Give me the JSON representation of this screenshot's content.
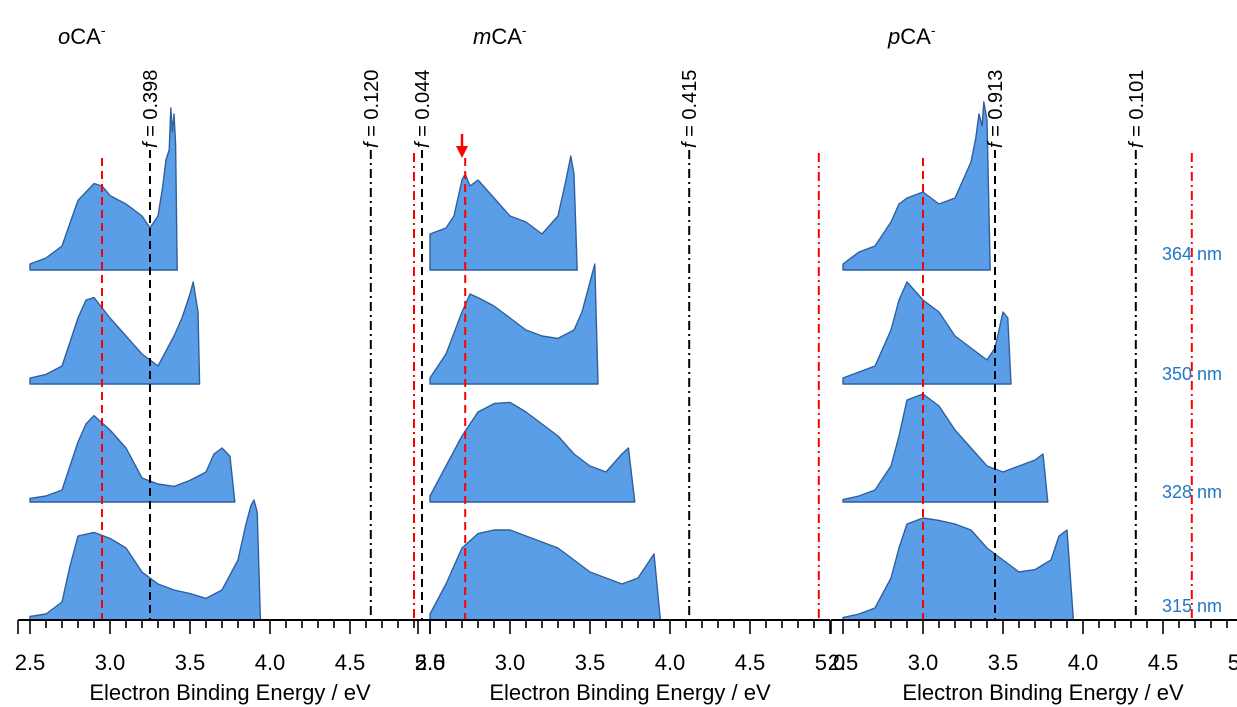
{
  "chart_data": {
    "type": "area",
    "xlabel": "Electron Binding Energy / eV",
    "xlim": [
      2.5,
      5.0
    ],
    "xticks": [
      "2.5",
      "3.0",
      "3.5",
      "4.0",
      "4.5",
      "5.0"
    ],
    "wavelength_labels": [
      "364 nm",
      "350 nm",
      "328 nm",
      "315 nm"
    ],
    "colors": {
      "fill": "#5a9ee8",
      "stroke": "#2f5f9e",
      "red_line": "#ff0000",
      "black_line": "#000000",
      "wavelength_label": "#1f77c7"
    },
    "panels": [
      {
        "title_italic": "o",
        "title_rest": "CA",
        "title_sup": "-",
        "red_lines": [
          2.95,
          4.9
        ],
        "f_lines": [
          {
            "x": 3.25,
            "style": "dashed",
            "label_f": "f",
            "label_value": "= 0.398"
          },
          {
            "x": 4.63,
            "style": "dashdot",
            "label_f": "f",
            "label_value": "= 0.120"
          }
        ],
        "arrow_x": null,
        "series": [
          {
            "name": "364 nm",
            "x": [
              2.5,
              2.6,
              2.7,
              2.8,
              2.85,
              2.9,
              2.95,
              3.0,
              3.1,
              3.2,
              3.25,
              3.3,
              3.33,
              3.35,
              3.37,
              3.38,
              3.39,
              3.4,
              3.41,
              3.42
            ],
            "y": [
              0.05,
              0.1,
              0.2,
              0.58,
              0.65,
              0.72,
              0.7,
              0.62,
              0.55,
              0.45,
              0.35,
              0.45,
              0.7,
              0.92,
              1.0,
              1.35,
              1.15,
              1.3,
              1.05,
              0.0
            ]
          },
          {
            "name": "350 nm",
            "x": [
              2.5,
              2.6,
              2.7,
              2.8,
              2.85,
              2.9,
              3.0,
              3.1,
              3.2,
              3.3,
              3.4,
              3.45,
              3.5,
              3.52,
              3.55,
              3.56
            ],
            "y": [
              0.05,
              0.08,
              0.15,
              0.55,
              0.7,
              0.72,
              0.55,
              0.4,
              0.25,
              0.15,
              0.4,
              0.55,
              0.75,
              0.85,
              0.6,
              0.0
            ]
          },
          {
            "name": "328 nm",
            "x": [
              2.5,
              2.6,
              2.7,
              2.8,
              2.85,
              2.9,
              3.0,
              3.1,
              3.2,
              3.3,
              3.4,
              3.5,
              3.6,
              3.65,
              3.7,
              3.75,
              3.78
            ],
            "y": [
              0.03,
              0.05,
              0.1,
              0.5,
              0.65,
              0.72,
              0.6,
              0.45,
              0.2,
              0.15,
              0.13,
              0.18,
              0.25,
              0.4,
              0.45,
              0.38,
              0.0
            ]
          },
          {
            "name": "315 nm",
            "x": [
              2.5,
              2.6,
              2.7,
              2.75,
              2.8,
              2.9,
              3.0,
              3.1,
              3.2,
              3.3,
              3.4,
              3.5,
              3.6,
              3.7,
              3.8,
              3.85,
              3.88,
              3.9,
              3.92,
              3.94
            ],
            "y": [
              0.03,
              0.05,
              0.15,
              0.45,
              0.7,
              0.73,
              0.68,
              0.6,
              0.4,
              0.3,
              0.25,
              0.22,
              0.18,
              0.25,
              0.5,
              0.8,
              0.95,
              1.0,
              0.9,
              0.0
            ]
          }
        ]
      },
      {
        "title_italic": "m",
        "title_rest": "CA",
        "title_sup": "-",
        "red_lines": [
          2.72,
          4.93
        ],
        "f_lines": [
          {
            "x": 2.45,
            "style": "dashed",
            "label_f": "f",
            "label_value": "= 0.044"
          },
          {
            "x": 4.12,
            "style": "dashdot",
            "label_f": "f",
            "label_value": "= 0.415"
          }
        ],
        "arrow_x": 2.7,
        "series": [
          {
            "name": "364 nm",
            "x": [
              2.5,
              2.6,
              2.65,
              2.7,
              2.72,
              2.75,
              2.8,
              2.9,
              3.0,
              3.1,
              3.2,
              3.3,
              3.35,
              3.38,
              3.4,
              3.42
            ],
            "y": [
              0.3,
              0.35,
              0.45,
              0.75,
              0.8,
              0.7,
              0.75,
              0.6,
              0.45,
              0.4,
              0.3,
              0.45,
              0.75,
              0.95,
              0.8,
              0.0
            ]
          },
          {
            "name": "350 nm",
            "x": [
              2.5,
              2.6,
              2.7,
              2.75,
              2.8,
              2.9,
              3.0,
              3.1,
              3.2,
              3.3,
              3.4,
              3.45,
              3.5,
              3.53,
              3.55
            ],
            "y": [
              0.05,
              0.25,
              0.6,
              0.75,
              0.72,
              0.65,
              0.55,
              0.45,
              0.4,
              0.38,
              0.45,
              0.6,
              0.85,
              1.0,
              0.0
            ]
          },
          {
            "name": "328 nm",
            "x": [
              2.5,
              2.6,
              2.7,
              2.8,
              2.9,
              3.0,
              3.1,
              3.2,
              3.3,
              3.4,
              3.5,
              3.6,
              3.7,
              3.74,
              3.78
            ],
            "y": [
              0.05,
              0.3,
              0.55,
              0.75,
              0.82,
              0.83,
              0.75,
              0.65,
              0.55,
              0.4,
              0.3,
              0.25,
              0.4,
              0.45,
              0.0
            ]
          },
          {
            "name": "315 nm",
            "x": [
              2.5,
              2.6,
              2.7,
              2.8,
              2.9,
              3.0,
              3.1,
              3.2,
              3.3,
              3.4,
              3.5,
              3.6,
              3.7,
              3.8,
              3.85,
              3.9,
              3.94
            ],
            "y": [
              0.05,
              0.3,
              0.6,
              0.72,
              0.75,
              0.75,
              0.7,
              0.65,
              0.6,
              0.5,
              0.4,
              0.35,
              0.3,
              0.35,
              0.45,
              0.55,
              0.0
            ]
          }
        ]
      },
      {
        "title_italic": "p",
        "title_rest": "CA",
        "title_sup": "-",
        "red_lines": [
          3.0,
          4.68
        ],
        "f_lines": [
          {
            "x": 3.45,
            "style": "dashed",
            "label_f": "f",
            "label_value": "= 0.913"
          },
          {
            "x": 4.33,
            "style": "dashdot",
            "label_f": "f",
            "label_value": "= 0.101"
          }
        ],
        "arrow_x": null,
        "series": [
          {
            "name": "364 nm",
            "x": [
              2.5,
              2.6,
              2.7,
              2.8,
              2.85,
              2.9,
              3.0,
              3.1,
              3.2,
              3.25,
              3.3,
              3.33,
              3.35,
              3.37,
              3.38,
              3.4,
              3.42
            ],
            "y": [
              0.05,
              0.15,
              0.2,
              0.4,
              0.55,
              0.6,
              0.65,
              0.55,
              0.6,
              0.75,
              0.9,
              1.1,
              1.3,
              1.2,
              1.4,
              1.25,
              0.0
            ]
          },
          {
            "name": "350 nm",
            "x": [
              2.5,
              2.6,
              2.7,
              2.8,
              2.85,
              2.9,
              3.0,
              3.1,
              3.2,
              3.3,
              3.4,
              3.45,
              3.5,
              3.53,
              3.55
            ],
            "y": [
              0.05,
              0.1,
              0.15,
              0.45,
              0.7,
              0.85,
              0.7,
              0.6,
              0.4,
              0.3,
              0.2,
              0.3,
              0.6,
              0.55,
              0.0
            ]
          },
          {
            "name": "328 nm",
            "x": [
              2.5,
              2.6,
              2.7,
              2.8,
              2.85,
              2.9,
              3.0,
              3.1,
              3.2,
              3.3,
              3.4,
              3.5,
              3.6,
              3.7,
              3.75,
              3.78
            ],
            "y": [
              0.02,
              0.05,
              0.1,
              0.3,
              0.55,
              0.85,
              0.9,
              0.8,
              0.6,
              0.45,
              0.3,
              0.25,
              0.3,
              0.35,
              0.4,
              0.0
            ]
          },
          {
            "name": "315 nm",
            "x": [
              2.5,
              2.6,
              2.7,
              2.8,
              2.85,
              2.9,
              3.0,
              3.1,
              3.2,
              3.3,
              3.4,
              3.5,
              3.6,
              3.7,
              3.8,
              3.85,
              3.9,
              3.94
            ],
            "y": [
              0.02,
              0.05,
              0.1,
              0.35,
              0.6,
              0.8,
              0.85,
              0.83,
              0.8,
              0.75,
              0.6,
              0.5,
              0.4,
              0.42,
              0.5,
              0.7,
              0.75,
              0.0
            ]
          }
        ]
      }
    ]
  }
}
